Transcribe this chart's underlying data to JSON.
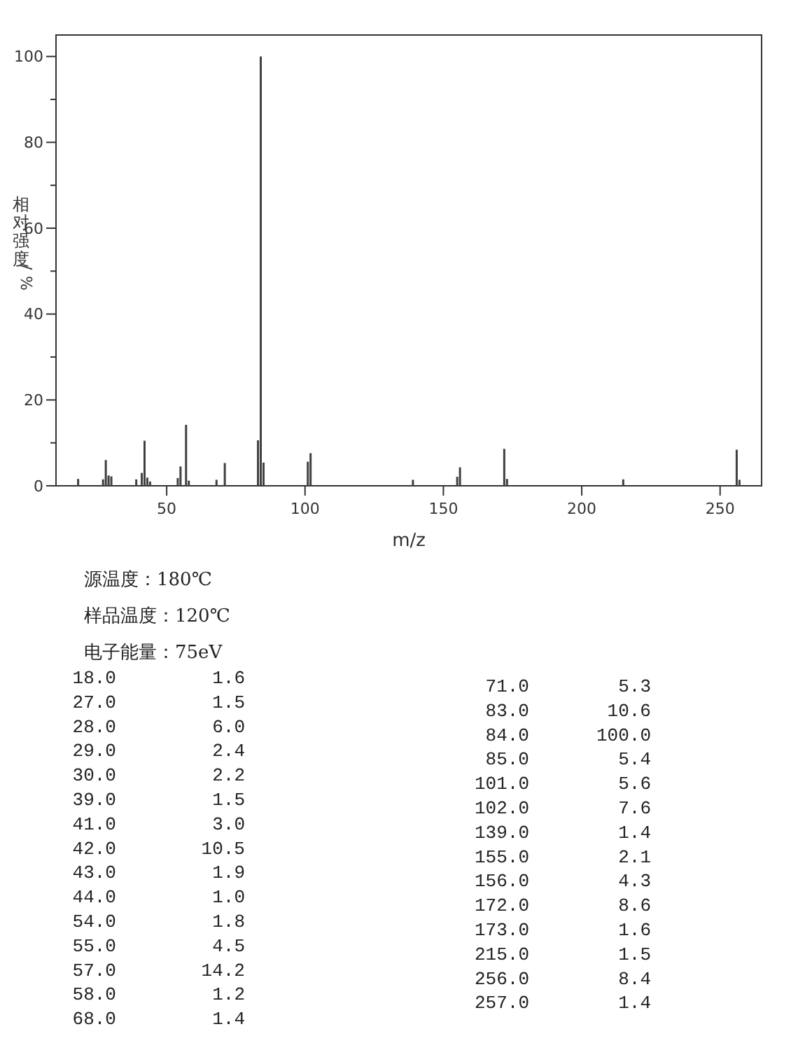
{
  "chart_data": {
    "type": "bar",
    "xlabel": "m/z",
    "ylabel": "相对强度/%",
    "x": [
      18,
      27,
      28,
      29,
      30,
      39,
      41,
      42,
      43,
      44,
      54,
      55,
      57,
      58,
      68,
      71,
      83,
      84,
      85,
      101,
      102,
      139,
      155,
      156,
      172,
      173,
      215,
      256,
      257
    ],
    "values": [
      1.6,
      1.5,
      6.0,
      2.4,
      2.2,
      1.5,
      3.0,
      10.5,
      1.9,
      1.0,
      1.8,
      4.5,
      14.2,
      1.2,
      1.4,
      5.3,
      10.6,
      100.0,
      5.4,
      5.6,
      7.6,
      1.4,
      2.1,
      4.3,
      8.6,
      1.6,
      1.5,
      8.4,
      1.4
    ],
    "color": "#404040",
    "xlim": [
      10,
      265
    ],
    "xticks": [
      50,
      100,
      150,
      200,
      250
    ],
    "ylim": [
      0,
      105
    ],
    "yticks": [
      0,
      {
        "value": 10,
        "label": null
      },
      20,
      {
        "value": 30,
        "label": null
      },
      40,
      {
        "value": 50,
        "label": null
      },
      60,
      {
        "value": 70,
        "label": null
      },
      80,
      {
        "value": 90,
        "label": null
      },
      100
    ],
    "grid": false,
    "annotations": [
      "源温度：180℃",
      "样品温度：120℃",
      "电子能量：75eV",
      "18.0",
      "1.6",
      "27.0",
      "1.5",
      "28.0",
      "6.0",
      "29.0",
      "2.4",
      "30.0",
      "2.2",
      "39.0",
      "1.5",
      "41.0",
      "3.0",
      "42.0",
      "10.5",
      "43.0",
      "1.9",
      "44.0",
      "1.0",
      "54.0",
      "1.8",
      "55.0",
      "4.5",
      "57.0",
      "14.2",
      "58.0",
      "1.2",
      "68.0",
      "1.4",
      "71.0",
      "5.3",
      "83.0",
      "10.6",
      "84.0",
      "100.0",
      "85.0",
      "5.4",
      "101.0",
      "5.6",
      "102.0",
      "7.6",
      "139.0",
      "1.4",
      "155.0",
      "2.1",
      "156.0",
      "4.3",
      "172.0",
      "8.6",
      "173.0",
      "1.6",
      "215.0",
      "1.5",
      "256.0",
      "8.4",
      "257.0",
      "1.4"
    ]
  }
}
